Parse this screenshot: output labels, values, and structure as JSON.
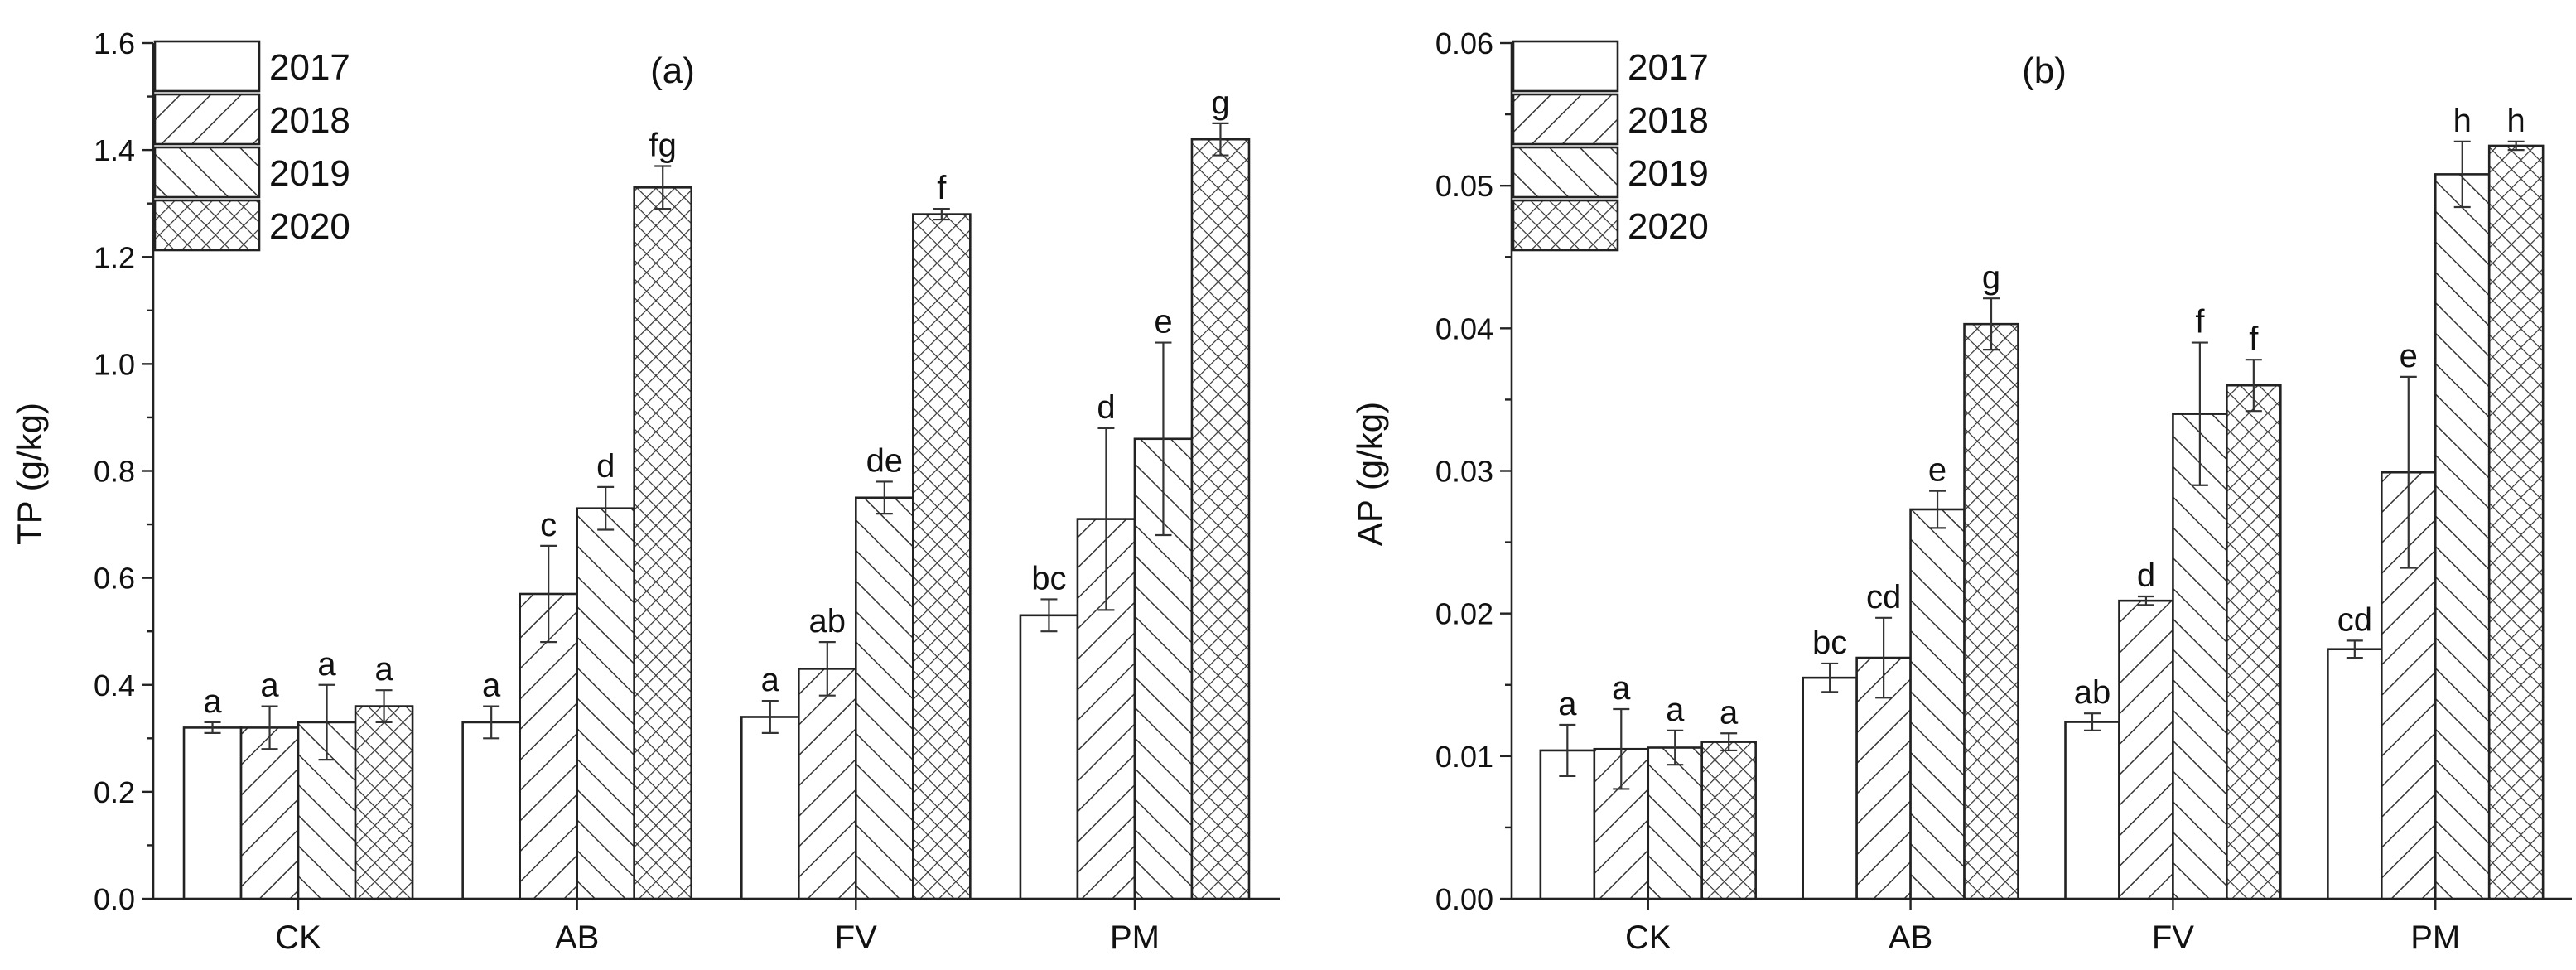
{
  "chart_data": [
    {
      "type": "bar",
      "panel_label": "(a)",
      "ylabel": "TP (g/kg)",
      "xlabel": "",
      "ylim": [
        0,
        1.6
      ],
      "yticks": [
        "0.0",
        "0.2",
        "0.4",
        "0.6",
        "0.8",
        "1.0",
        "1.2",
        "1.4",
        "1.6"
      ],
      "categories": [
        "CK",
        "AB",
        "FV",
        "PM"
      ],
      "legend_position": "top-left",
      "series": [
        {
          "name": "2017",
          "pattern": "none",
          "values": [
            0.32,
            0.33,
            0.34,
            0.53
          ],
          "errors": [
            0.01,
            0.03,
            0.03,
            0.03
          ],
          "letters": [
            "a",
            "a",
            "a",
            "bc"
          ]
        },
        {
          "name": "2018",
          "pattern": "slash",
          "values": [
            0.32,
            0.57,
            0.43,
            0.71
          ],
          "errors": [
            0.04,
            0.09,
            0.05,
            0.17
          ],
          "letters": [
            "a",
            "c",
            "ab",
            "d"
          ]
        },
        {
          "name": "2019",
          "pattern": "backslash",
          "values": [
            0.33,
            0.73,
            0.75,
            0.86
          ],
          "errors": [
            0.07,
            0.04,
            0.03,
            0.18
          ],
          "letters": [
            "a",
            "d",
            "de",
            "e"
          ]
        },
        {
          "name": "2020",
          "pattern": "cross",
          "values": [
            0.36,
            1.33,
            1.28,
            1.42
          ],
          "errors": [
            0.03,
            0.04,
            0.01,
            0.03
          ],
          "letters": [
            "a",
            "fg",
            "f",
            "g"
          ]
        }
      ]
    },
    {
      "type": "bar",
      "panel_label": "(b)",
      "ylabel": "AP (g/kg)",
      "xlabel": "",
      "ylim": [
        0,
        0.06
      ],
      "yticks": [
        "0.00",
        "0.01",
        "0.02",
        "0.03",
        "0.04",
        "0.05",
        "0.06"
      ],
      "categories": [
        "CK",
        "AB",
        "FV",
        "PM"
      ],
      "legend_position": "top-left",
      "series": [
        {
          "name": "2017",
          "pattern": "none",
          "values": [
            0.0104,
            0.0155,
            0.0124,
            0.0175
          ],
          "errors": [
            0.0018,
            0.001,
            0.0006,
            0.0006
          ],
          "letters": [
            "a",
            "bc",
            "ab",
            "cd"
          ]
        },
        {
          "name": "2018",
          "pattern": "slash",
          "values": [
            0.0105,
            0.0169,
            0.0209,
            0.0299
          ],
          "errors": [
            0.0028,
            0.0028,
            0.0003,
            0.0067
          ],
          "letters": [
            "a",
            "cd",
            "d",
            "e"
          ]
        },
        {
          "name": "2019",
          "pattern": "backslash",
          "values": [
            0.0106,
            0.0273,
            0.034,
            0.0508
          ],
          "errors": [
            0.0012,
            0.0013,
            0.005,
            0.0023
          ],
          "letters": [
            "a",
            "e",
            "f",
            "h"
          ]
        },
        {
          "name": "2020",
          "pattern": "cross",
          "values": [
            0.011,
            0.0403,
            0.036,
            0.0528
          ],
          "errors": [
            0.0006,
            0.0018,
            0.0018,
            0.0003
          ],
          "letters": [
            "a",
            "g",
            "f",
            "h"
          ]
        }
      ]
    }
  ]
}
